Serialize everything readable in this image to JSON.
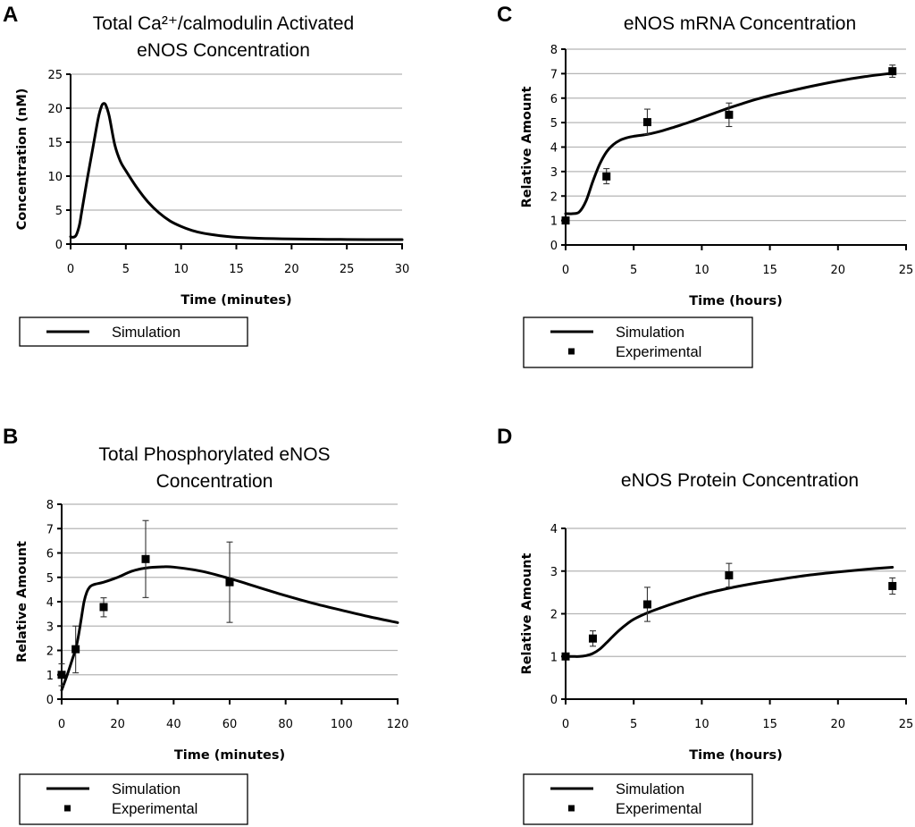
{
  "chart_data": [
    {
      "id": "A",
      "panel_letter": "A",
      "type": "line",
      "title_lines": [
        "Total Ca²⁺/calmodulin Activated",
        "eNOS Concentration"
      ],
      "xlabel": "Time (minutes)",
      "ylabel": "Concentration (nM)",
      "xlim": [
        0,
        30
      ],
      "ylim": [
        0,
        25
      ],
      "xticks": [
        0,
        5,
        10,
        15,
        20,
        25,
        30
      ],
      "yticks": [
        0,
        5,
        10,
        15,
        20,
        25
      ],
      "grid": "horizontal",
      "legend_position": "below-left",
      "legend": [
        "Simulation"
      ],
      "series": [
        {
          "name": "Simulation",
          "kind": "line",
          "x": [
            0,
            0.2,
            0.5,
            0.8,
            1.0,
            1.5,
            2.0,
            2.5,
            2.8,
            3.0,
            3.2,
            3.5,
            4.0,
            4.5,
            5.0,
            6.0,
            7.0,
            8.0,
            9.0,
            10.0,
            11.0,
            12.0,
            13.0,
            14.0,
            15.0,
            17.0,
            20.0,
            25.0,
            30.0
          ],
          "y": [
            1.1,
            1.0,
            1.3,
            2.8,
            4.7,
            9.5,
            14.0,
            18.5,
            20.3,
            20.7,
            20.4,
            18.8,
            14.6,
            12.2,
            10.8,
            8.3,
            6.2,
            4.6,
            3.4,
            2.6,
            2.0,
            1.6,
            1.35,
            1.15,
            1.0,
            0.85,
            0.75,
            0.68,
            0.65
          ]
        }
      ]
    },
    {
      "id": "B",
      "panel_letter": "B",
      "type": "line",
      "title_lines": [
        "Total Phosphorylated eNOS",
        "Concentration"
      ],
      "xlabel": "Time (minutes)",
      "ylabel": "Relative Amount",
      "xlim": [
        0,
        120
      ],
      "ylim": [
        0,
        8
      ],
      "xticks": [
        0,
        20,
        40,
        60,
        80,
        100,
        120
      ],
      "yticks": [
        0,
        1,
        2,
        3,
        4,
        5,
        6,
        7,
        8
      ],
      "grid": "horizontal",
      "legend_position": "below-left",
      "legend": [
        "Simulation",
        "Experimental"
      ],
      "series": [
        {
          "name": "Simulation",
          "kind": "line",
          "x": [
            0,
            2,
            4,
            5,
            6,
            7,
            8,
            9,
            10,
            11,
            12,
            15,
            20,
            25,
            30,
            36,
            40,
            50,
            60,
            70,
            80,
            90,
            100,
            110,
            120
          ],
          "y": [
            0.37,
            1.0,
            1.7,
            2.05,
            2.6,
            3.3,
            4.0,
            4.4,
            4.6,
            4.68,
            4.72,
            4.8,
            5.0,
            5.25,
            5.38,
            5.43,
            5.42,
            5.25,
            4.95,
            4.6,
            4.25,
            3.93,
            3.65,
            3.38,
            3.14
          ]
        },
        {
          "name": "Experimental",
          "kind": "scatter",
          "x": [
            0,
            5,
            15,
            30,
            60
          ],
          "y": [
            1.0,
            2.05,
            3.78,
            5.75,
            4.8
          ],
          "err_low": [
            0.45,
            0.97,
            0.4,
            1.58,
            1.65
          ],
          "err_high": [
            0.45,
            0.95,
            0.38,
            1.58,
            1.65
          ]
        }
      ]
    },
    {
      "id": "C",
      "panel_letter": "C",
      "type": "line",
      "title_lines": [
        "eNOS mRNA Concentration"
      ],
      "xlabel": "Time (hours)",
      "ylabel": "Relative Amount",
      "xlim": [
        0,
        25
      ],
      "ylim": [
        0,
        8
      ],
      "xticks": [
        0,
        5,
        10,
        15,
        20,
        25
      ],
      "yticks": [
        0,
        1,
        2,
        3,
        4,
        5,
        6,
        7,
        8
      ],
      "grid": "horizontal",
      "legend_position": "below-left",
      "legend": [
        "Simulation",
        "Experimental"
      ],
      "series": [
        {
          "name": "Simulation",
          "kind": "line",
          "x": [
            0,
            0.5,
            1.0,
            1.5,
            2.0,
            2.5,
            3.0,
            3.5,
            4.0,
            4.5,
            5.0,
            6.0,
            7.0,
            8.0,
            9.0,
            10.0,
            11.0,
            12.0,
            13.0,
            14.0,
            15.0,
            16.0,
            18.0,
            20.0,
            22.0,
            24.0
          ],
          "y": [
            1.28,
            1.28,
            1.35,
            1.8,
            2.6,
            3.3,
            3.8,
            4.1,
            4.28,
            4.38,
            4.44,
            4.52,
            4.65,
            4.82,
            5.0,
            5.2,
            5.4,
            5.6,
            5.78,
            5.95,
            6.1,
            6.23,
            6.48,
            6.7,
            6.88,
            7.02
          ]
        },
        {
          "name": "Experimental",
          "kind": "scatter",
          "x": [
            0,
            3,
            6,
            12,
            24
          ],
          "y": [
            1.0,
            2.8,
            5.02,
            5.32,
            7.1
          ],
          "err_low": [
            0.1,
            0.3,
            0.5,
            0.48,
            0.25
          ],
          "err_high": [
            0.1,
            0.32,
            0.53,
            0.48,
            0.25
          ]
        }
      ]
    },
    {
      "id": "D",
      "panel_letter": "D",
      "type": "line",
      "title_lines": [
        "eNOS Protein Concentration"
      ],
      "xlabel": "Time (hours)",
      "ylabel": "Relative Amount",
      "xlim": [
        0,
        25
      ],
      "ylim": [
        0,
        4
      ],
      "xticks": [
        0,
        5,
        10,
        15,
        20,
        25
      ],
      "yticks": [
        0,
        1,
        2,
        3,
        4
      ],
      "grid": "horizontal",
      "legend_position": "below-left",
      "legend": [
        "Simulation",
        "Experimental"
      ],
      "series": [
        {
          "name": "Simulation",
          "kind": "line",
          "x": [
            0,
            0.5,
            1.0,
            1.5,
            2.0,
            2.5,
            3.0,
            3.5,
            4.0,
            4.5,
            5.0,
            6.0,
            7.0,
            8.0,
            10.0,
            12.0,
            14.0,
            16.0,
            18.0,
            20.0,
            22.0,
            24.0
          ],
          "y": [
            1.0,
            1.0,
            1.0,
            1.02,
            1.07,
            1.17,
            1.32,
            1.48,
            1.63,
            1.76,
            1.87,
            2.02,
            2.14,
            2.25,
            2.45,
            2.6,
            2.72,
            2.82,
            2.91,
            2.98,
            3.04,
            3.09
          ]
        },
        {
          "name": "Experimental",
          "kind": "scatter",
          "x": [
            0,
            2,
            6,
            12,
            24
          ],
          "y": [
            1.0,
            1.42,
            2.22,
            2.9,
            2.65
          ],
          "err_low": [
            0.03,
            0.18,
            0.4,
            0.27,
            0.19
          ],
          "err_high": [
            0.03,
            0.18,
            0.4,
            0.28,
            0.19
          ]
        }
      ]
    }
  ]
}
